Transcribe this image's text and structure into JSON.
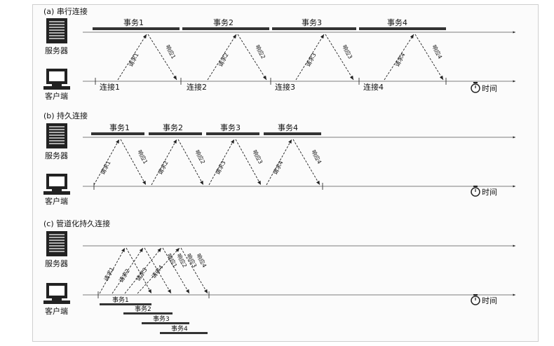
{
  "labels": {
    "server": "服务器",
    "client": "客户端",
    "time": "时间"
  },
  "sections": [
    {
      "title": "(a) 串行连接",
      "transactions": [
        "事务1",
        "事务2",
        "事务3",
        "事务4"
      ],
      "connections": [
        "连接1",
        "连接2",
        "连接3",
        "连接4"
      ],
      "requests": [
        "请求1",
        "请求2",
        "请求3",
        "请求4"
      ],
      "responses": [
        "响应1",
        "响应2",
        "响应3",
        "响应4"
      ]
    },
    {
      "title": "(b) 持久连接",
      "transactions": [
        "事务1",
        "事务2",
        "事务3",
        "事务4"
      ],
      "requests": [
        "请求1",
        "请求2",
        "请求3",
        "请求4"
      ],
      "responses": [
        "响应1",
        "响应2",
        "响应3",
        "响应4"
      ]
    },
    {
      "title": "(c) 管道化持久连接",
      "transactions": [
        "事务1",
        "事务2",
        "事务3",
        "事务4"
      ],
      "requests": [
        "请求1",
        "请求2",
        "请求3",
        "请求4"
      ],
      "responses": [
        "响应1",
        "响应2",
        "响应3",
        "响应4"
      ]
    }
  ]
}
